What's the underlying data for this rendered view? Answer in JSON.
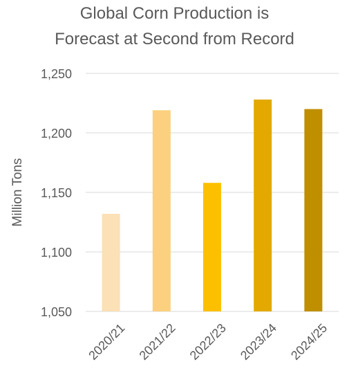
{
  "chart_data": {
    "type": "bar",
    "title": [
      "Global Corn Production is",
      "Forecast at Second from Record"
    ],
    "xlabel": "",
    "ylabel": "Million Tons",
    "categories": [
      "2020/21",
      "2021/22",
      "2022/23",
      "2023/24",
      "2024/25"
    ],
    "values": [
      1132,
      1219,
      1158,
      1228,
      1220
    ],
    "ylim": [
      1050,
      1250
    ],
    "yticks": [
      1050,
      1100,
      1150,
      1200,
      1250
    ],
    "ytick_labels": [
      "1,050",
      "1,100",
      "1,150",
      "1,200",
      "1,250"
    ],
    "bar_colors": [
      "#FCE0B6",
      "#FBD07F",
      "#FDC000",
      "#E3A900",
      "#BF8F00"
    ],
    "gridlines": true,
    "legend": "none"
  }
}
